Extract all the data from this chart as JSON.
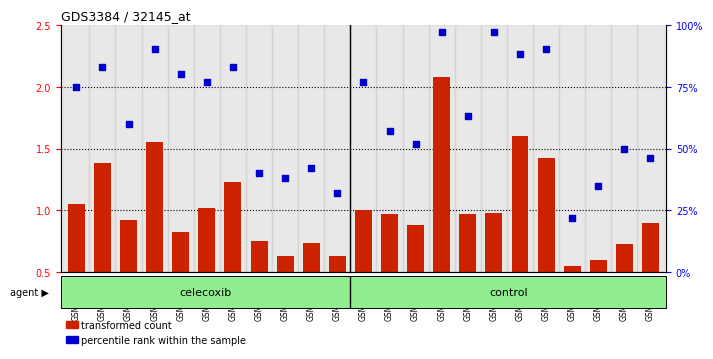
{
  "title": "GDS3384 / 32145_at",
  "samples": [
    "GSM283127",
    "GSM283129",
    "GSM283132",
    "GSM283134",
    "GSM283135",
    "GSM283136",
    "GSM283138",
    "GSM283142",
    "GSM283145",
    "GSM283147",
    "GSM283148",
    "GSM283128",
    "GSM283130",
    "GSM283131",
    "GSM283133",
    "GSM283137",
    "GSM283139",
    "GSM283140",
    "GSM283141",
    "GSM283143",
    "GSM283144",
    "GSM283146",
    "GSM283149"
  ],
  "bar_values": [
    1.05,
    1.38,
    0.92,
    1.55,
    0.83,
    1.02,
    1.23,
    0.75,
    0.63,
    0.74,
    0.63,
    1.0,
    0.97,
    0.88,
    2.08,
    0.97,
    0.98,
    1.6,
    1.42,
    0.55,
    0.6,
    0.73,
    0.9
  ],
  "dot_values_pct": [
    75,
    83,
    60,
    90,
    80,
    77,
    83,
    40,
    38,
    42,
    32,
    77,
    57,
    52,
    97,
    63,
    97,
    88,
    90,
    22,
    35,
    50,
    46
  ],
  "celecoxib_count": 11,
  "control_count": 12,
  "ylim_left": [
    0.5,
    2.5
  ],
  "ylim_right": [
    0,
    100
  ],
  "yticks_left": [
    0.5,
    1.0,
    1.5,
    2.0,
    2.5
  ],
  "yticks_right": [
    0,
    25,
    50,
    75,
    100
  ],
  "ytick_labels_right": [
    "0%",
    "25%",
    "50%",
    "75%",
    "100%"
  ],
  "hlines": [
    1.0,
    1.5,
    2.0
  ],
  "bar_color": "#CC2200",
  "dot_color": "#0000CC",
  "group_bg_color": "#90EE90",
  "agent_label": "agent",
  "legend_bar": "transformed count",
  "legend_dot": "percentile rank within the sample",
  "group_labels": [
    "celecoxib",
    "control"
  ],
  "bar_width": 0.65
}
